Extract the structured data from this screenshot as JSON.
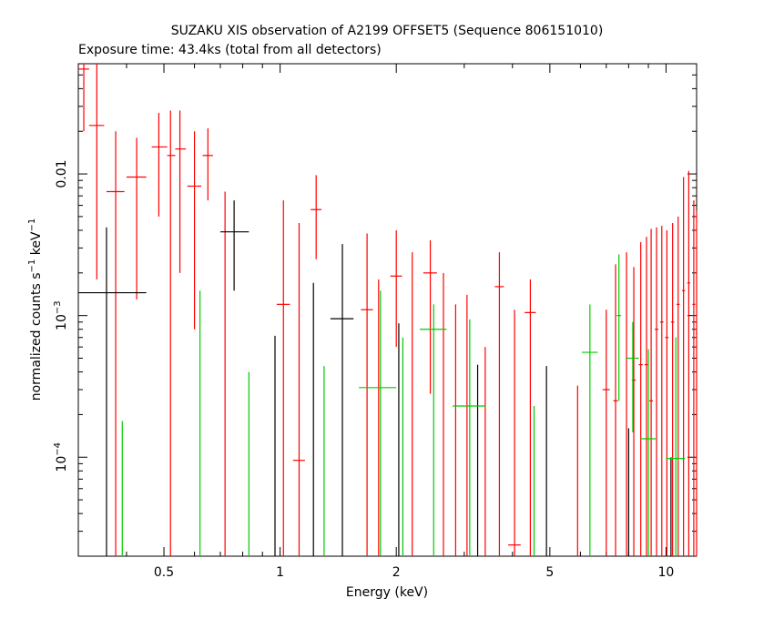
{
  "chart_data": {
    "type": "scatter",
    "title": "SUZAKU XIS observation of A2199 OFFSET5 (Sequence 806151010)",
    "subtitle": "Exposure time: 43.4ks (total from all detectors)",
    "xlabel": "Energy (keV)",
    "ylabel": "normalized counts s^-1 keV^-1",
    "x_scale": "log",
    "y_scale": "log",
    "xlim": [
      0.3,
      12
    ],
    "ylim": [
      2e-05,
      0.06
    ],
    "x_ticks": [
      {
        "value": 0.5,
        "label": "0.5"
      },
      {
        "value": 1,
        "label": "1"
      },
      {
        "value": 2,
        "label": "2"
      },
      {
        "value": 5,
        "label": "5"
      },
      {
        "value": 10,
        "label": "10"
      }
    ],
    "y_ticks": [
      {
        "value": 0.01,
        "label": "0.01"
      },
      {
        "value": 0.001,
        "label": "10^-3"
      },
      {
        "value": 0.0001,
        "label": "10^-4"
      }
    ],
    "series": [
      {
        "color": "#ff0000",
        "points": [
          {
            "x": 0.31,
            "xlo": 0.3,
            "xhi": 0.32,
            "y": 0.055,
            "ylo": 0.02,
            "yhi": 0.06
          },
          {
            "x": 0.335,
            "xlo": 0.32,
            "xhi": 0.35,
            "y": 0.022,
            "ylo": 0.0018,
            "yhi": 0.06
          },
          {
            "x": 0.375,
            "xlo": 0.355,
            "xhi": 0.395,
            "y": 0.0075,
            "ylo": 2e-05,
            "yhi": 0.02
          },
          {
            "x": 0.425,
            "xlo": 0.4,
            "xhi": 0.45,
            "y": 0.0095,
            "ylo": 0.0013,
            "yhi": 0.018
          },
          {
            "x": 0.485,
            "xlo": 0.465,
            "xhi": 0.51,
            "y": 0.0155,
            "ylo": 0.005,
            "yhi": 0.027
          },
          {
            "x": 0.52,
            "xlo": 0.51,
            "xhi": 0.535,
            "y": 0.0135,
            "ylo": 2e-05,
            "yhi": 0.028
          },
          {
            "x": 0.55,
            "xlo": 0.535,
            "xhi": 0.57,
            "y": 0.015,
            "ylo": 0.002,
            "yhi": 0.028
          },
          {
            "x": 0.6,
            "xlo": 0.575,
            "xhi": 0.625,
            "y": 0.0082,
            "ylo": 0.0008,
            "yhi": 0.02
          },
          {
            "x": 0.65,
            "xlo": 0.63,
            "xhi": 0.67,
            "y": 0.0135,
            "ylo": 0.0065,
            "yhi": 0.021
          },
          {
            "x": 0.72,
            "xlo": 0.72,
            "xhi": 0.72,
            "y": 0.0022,
            "ylo": 2e-05,
            "yhi": 0.0075
          },
          {
            "x": 1.02,
            "xlo": 0.98,
            "xhi": 1.06,
            "y": 0.0012,
            "ylo": 2e-05,
            "yhi": 0.0065
          },
          {
            "x": 1.12,
            "xlo": 1.08,
            "xhi": 1.16,
            "y": 9.5e-05,
            "ylo": 2e-05,
            "yhi": 0.0045
          },
          {
            "x": 1.24,
            "xlo": 1.2,
            "xhi": 1.28,
            "y": 0.0056,
            "ylo": 0.0025,
            "yhi": 0.0098
          },
          {
            "x": 1.68,
            "xlo": 1.62,
            "xhi": 1.74,
            "y": 0.0011,
            "ylo": 2e-05,
            "yhi": 0.0038
          },
          {
            "x": 1.8,
            "xlo": 1.8,
            "xhi": 1.8,
            "y": 0.001,
            "ylo": 2e-05,
            "yhi": 0.0018
          },
          {
            "x": 2.0,
            "xlo": 1.93,
            "xhi": 2.07,
            "y": 0.0019,
            "ylo": 0.0006,
            "yhi": 0.004
          },
          {
            "x": 2.2,
            "xlo": 2.2,
            "xhi": 2.2,
            "y": 0.001,
            "ylo": 2e-05,
            "yhi": 0.0028
          },
          {
            "x": 2.45,
            "xlo": 2.35,
            "xhi": 2.55,
            "y": 0.002,
            "ylo": 0.00028,
            "yhi": 0.0034
          },
          {
            "x": 2.65,
            "xlo": 2.65,
            "xhi": 2.65,
            "y": 0.001,
            "ylo": 2e-05,
            "yhi": 0.002
          },
          {
            "x": 2.85,
            "xlo": 2.85,
            "xhi": 2.85,
            "y": 0.001,
            "ylo": 2e-05,
            "yhi": 0.0012
          },
          {
            "x": 3.05,
            "xlo": 3.05,
            "xhi": 3.05,
            "y": 0.0008,
            "ylo": 2e-05,
            "yhi": 0.0014
          },
          {
            "x": 3.4,
            "xlo": 3.4,
            "xhi": 3.4,
            "y": 0.0004,
            "ylo": 2e-05,
            "yhi": 0.0006
          },
          {
            "x": 3.7,
            "xlo": 3.6,
            "xhi": 3.8,
            "y": 0.0016,
            "ylo": 2e-05,
            "yhi": 0.0028
          },
          {
            "x": 4.05,
            "xlo": 3.9,
            "xhi": 4.2,
            "y": 2.4e-05,
            "ylo": 2e-05,
            "yhi": 0.0011
          },
          {
            "x": 4.45,
            "xlo": 4.3,
            "xhi": 4.6,
            "y": 0.00105,
            "ylo": 2e-05,
            "yhi": 0.0018
          },
          {
            "x": 5.9,
            "xlo": 5.9,
            "xhi": 5.9,
            "y": 0.0002,
            "ylo": 2e-05,
            "yhi": 0.00032
          },
          {
            "x": 7.0,
            "xlo": 6.85,
            "xhi": 7.15,
            "y": 0.0003,
            "ylo": 2e-05,
            "yhi": 0.0011
          },
          {
            "x": 7.4,
            "xlo": 7.3,
            "xhi": 7.5,
            "y": 0.00025,
            "ylo": 2e-05,
            "yhi": 0.0023
          },
          {
            "x": 7.9,
            "xlo": 7.9,
            "xhi": 7.9,
            "y": 0.0002,
            "ylo": 2e-05,
            "yhi": 0.0028
          },
          {
            "x": 8.25,
            "xlo": 8.15,
            "xhi": 8.35,
            "y": 0.00035,
            "ylo": 2e-05,
            "yhi": 0.0022
          },
          {
            "x": 8.6,
            "xlo": 8.5,
            "xhi": 8.7,
            "y": 0.00045,
            "ylo": 2e-05,
            "yhi": 0.0033
          },
          {
            "x": 8.9,
            "xlo": 8.8,
            "xhi": 9.0,
            "y": 0.00045,
            "ylo": 2e-05,
            "yhi": 0.0036
          },
          {
            "x": 9.15,
            "xlo": 9.05,
            "xhi": 9.25,
            "y": 0.00025,
            "ylo": 2e-05,
            "yhi": 0.0041
          },
          {
            "x": 9.45,
            "xlo": 9.35,
            "xhi": 9.55,
            "y": 0.0008,
            "ylo": 2e-05,
            "yhi": 0.0042
          },
          {
            "x": 9.75,
            "xlo": 9.65,
            "xhi": 9.85,
            "y": 0.0009,
            "ylo": 2e-05,
            "yhi": 0.0043
          },
          {
            "x": 10.05,
            "xlo": 9.95,
            "xhi": 10.15,
            "y": 0.0007,
            "ylo": 2e-05,
            "yhi": 0.004
          },
          {
            "x": 10.4,
            "xlo": 10.3,
            "xhi": 10.5,
            "y": 0.0009,
            "ylo": 2e-05,
            "yhi": 0.0045
          },
          {
            "x": 10.75,
            "xlo": 10.65,
            "xhi": 10.85,
            "y": 0.0012,
            "ylo": 2e-05,
            "yhi": 0.005
          },
          {
            "x": 11.1,
            "xlo": 11.0,
            "xhi": 11.2,
            "y": 0.0015,
            "ylo": 2e-05,
            "yhi": 0.0095
          },
          {
            "x": 11.45,
            "xlo": 11.35,
            "xhi": 11.55,
            "y": 0.0017,
            "ylo": 2e-05,
            "yhi": 0.0105
          },
          {
            "x": 11.8,
            "xlo": 11.7,
            "xhi": 11.9,
            "y": 0.0012,
            "ylo": 2e-05,
            "yhi": 0.0065
          },
          {
            "x": 12.0,
            "xlo": 11.95,
            "xhi": 12.0,
            "y": 0.00075,
            "ylo": 2e-05,
            "yhi": 0.0055
          }
        ]
      },
      {
        "color": "#000000",
        "points": [
          {
            "x": 0.355,
            "xlo": 0.3,
            "xhi": 0.45,
            "y": 0.00145,
            "ylo": 2e-05,
            "yhi": 0.0042
          },
          {
            "x": 0.76,
            "xlo": 0.7,
            "xhi": 0.83,
            "y": 0.0039,
            "ylo": 0.0015,
            "yhi": 0.0065
          },
          {
            "x": 0.97,
            "xlo": 0.97,
            "xhi": 0.97,
            "y": 0.0003,
            "ylo": 2e-05,
            "yhi": 0.00072
          },
          {
            "x": 1.22,
            "xlo": 1.22,
            "xhi": 1.22,
            "y": 0.0006,
            "ylo": 2e-05,
            "yhi": 0.0017
          },
          {
            "x": 1.45,
            "xlo": 1.35,
            "xhi": 1.55,
            "y": 0.00095,
            "ylo": 2e-05,
            "yhi": 0.0032
          },
          {
            "x": 2.03,
            "xlo": 2.03,
            "xhi": 2.03,
            "y": 0.0004,
            "ylo": 2e-05,
            "yhi": 0.00088
          },
          {
            "x": 3.25,
            "xlo": 3.25,
            "xhi": 3.25,
            "y": 0.0002,
            "ylo": 2e-05,
            "yhi": 0.00045
          },
          {
            "x": 4.9,
            "xlo": 4.9,
            "xhi": 4.9,
            "y": 8e-05,
            "ylo": 2e-05,
            "yhi": 0.00044
          },
          {
            "x": 8.0,
            "xlo": 8.0,
            "xhi": 8.0,
            "y": 0.0001,
            "ylo": 2e-05,
            "yhi": 0.00016
          },
          {
            "x": 10.3,
            "xlo": 10.3,
            "xhi": 10.3,
            "y": 6e-05,
            "ylo": 2e-05,
            "yhi": 0.0001
          }
        ]
      },
      {
        "color": "#00cc00",
        "points": [
          {
            "x": 0.39,
            "xlo": 0.39,
            "xhi": 0.39,
            "y": 5e-05,
            "ylo": 2e-05,
            "yhi": 0.00018
          },
          {
            "x": 0.62,
            "xlo": 0.62,
            "xhi": 0.62,
            "y": 0.0006,
            "ylo": 2e-05,
            "yhi": 0.0015
          },
          {
            "x": 0.83,
            "xlo": 0.83,
            "xhi": 0.83,
            "y": 0.0002,
            "ylo": 2e-05,
            "yhi": 0.0004
          },
          {
            "x": 1.3,
            "xlo": 1.3,
            "xhi": 1.3,
            "y": 0.0002,
            "ylo": 2e-05,
            "yhi": 0.00044
          },
          {
            "x": 1.82,
            "xlo": 1.6,
            "xhi": 2.0,
            "y": 0.00031,
            "ylo": 2e-05,
            "yhi": 0.0015
          },
          {
            "x": 2.08,
            "xlo": 2.08,
            "xhi": 2.08,
            "y": 0.0003,
            "ylo": 2e-05,
            "yhi": 0.0007
          },
          {
            "x": 2.5,
            "xlo": 2.3,
            "xhi": 2.7,
            "y": 0.0008,
            "ylo": 2e-05,
            "yhi": 0.0012
          },
          {
            "x": 3.1,
            "xlo": 2.8,
            "xhi": 3.4,
            "y": 0.00023,
            "ylo": 2e-05,
            "yhi": 0.00094
          },
          {
            "x": 4.55,
            "xlo": 4.55,
            "xhi": 4.55,
            "y": 0.0001,
            "ylo": 2e-05,
            "yhi": 0.00023
          },
          {
            "x": 6.35,
            "xlo": 6.05,
            "xhi": 6.65,
            "y": 0.00055,
            "ylo": 2e-05,
            "yhi": 0.0012
          },
          {
            "x": 7.55,
            "xlo": 7.45,
            "xhi": 7.65,
            "y": 0.001,
            "ylo": 0.00025,
            "yhi": 0.0027
          },
          {
            "x": 8.2,
            "xlo": 7.9,
            "xhi": 8.5,
            "y": 0.0005,
            "ylo": 0.00015,
            "yhi": 0.0009
          },
          {
            "x": 9.0,
            "xlo": 8.6,
            "xhi": 9.4,
            "y": 0.000135,
            "ylo": 2e-05,
            "yhi": 0.00058
          },
          {
            "x": 10.6,
            "xlo": 10.0,
            "xhi": 11.2,
            "y": 9.8e-05,
            "ylo": 2e-05,
            "yhi": 0.0007
          }
        ]
      }
    ]
  }
}
